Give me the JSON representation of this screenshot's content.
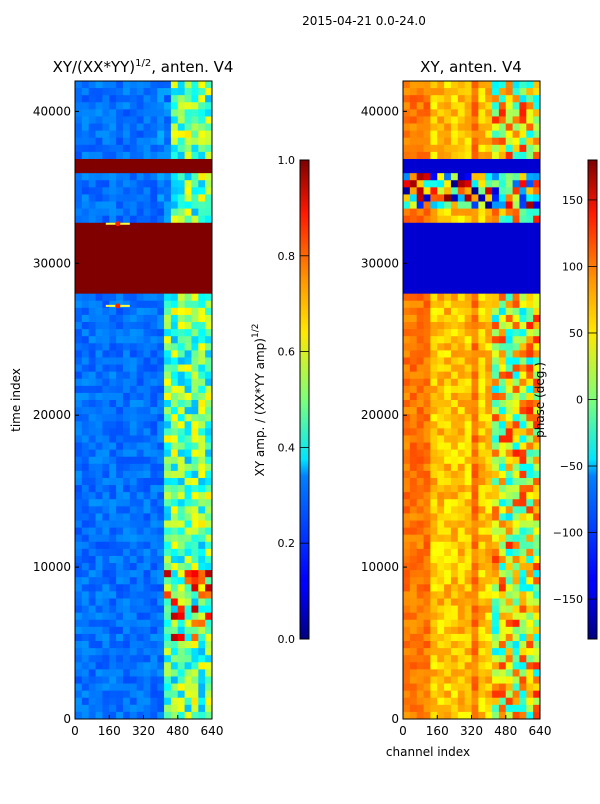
{
  "suptitle": "2015-04-21 0.0-24.0",
  "chart_data": [
    {
      "type": "heatmap",
      "title": "XY/(XX*YY)^1/2, anten. V4",
      "title_parts": {
        "main": "XY/(XX*YY)",
        "sup": "1/2",
        "tail": ", anten. V4"
      },
      "xlabel": "",
      "ylabel": "time index",
      "xlim": [
        0,
        640
      ],
      "ylim": [
        0,
        42000
      ],
      "xticks": [
        "0",
        "160",
        "320",
        "480",
        "640"
      ],
      "yticks": [
        "0",
        "10000",
        "20000",
        "30000",
        "40000"
      ],
      "colorbar": {
        "label": "XY amp. / (XX*YY amp)^1/2",
        "label_parts": {
          "main": "XY amp. / (XX*YY amp)",
          "sup": "1/2"
        },
        "range": [
          0.0,
          1.0
        ],
        "ticks": [
          "0.0",
          "0.2",
          "0.4",
          "0.6",
          "0.8",
          "1.0"
        ],
        "colormap": "jet"
      },
      "saturated_bands": [
        [
          28000,
          32500
        ],
        [
          36000,
          36800
        ]
      ],
      "hot_spots": [
        [
          200,
          27200
        ],
        [
          200,
          32600
        ]
      ],
      "high_channel_region": [
        420,
        640
      ]
    },
    {
      "type": "heatmap",
      "title": "XY, anten. V4",
      "xlabel": "channel index",
      "ylabel": "",
      "xlim": [
        0,
        640
      ],
      "ylim": [
        0,
        42000
      ],
      "xticks": [
        "0",
        "160",
        "320",
        "480",
        "640"
      ],
      "yticks": [
        "0",
        "10000",
        "20000",
        "30000",
        "40000"
      ],
      "colorbar": {
        "label": "phase (deg.)",
        "range": [
          -180,
          180
        ],
        "ticks": [
          "−150",
          "−100",
          "−50",
          "0",
          "50",
          "100",
          "150"
        ],
        "colormap": "jet"
      },
      "low_phase_bands": [
        [
          28000,
          32500
        ],
        [
          36000,
          36800
        ]
      ],
      "noisy_band": [
        33500,
        36000
      ]
    }
  ]
}
